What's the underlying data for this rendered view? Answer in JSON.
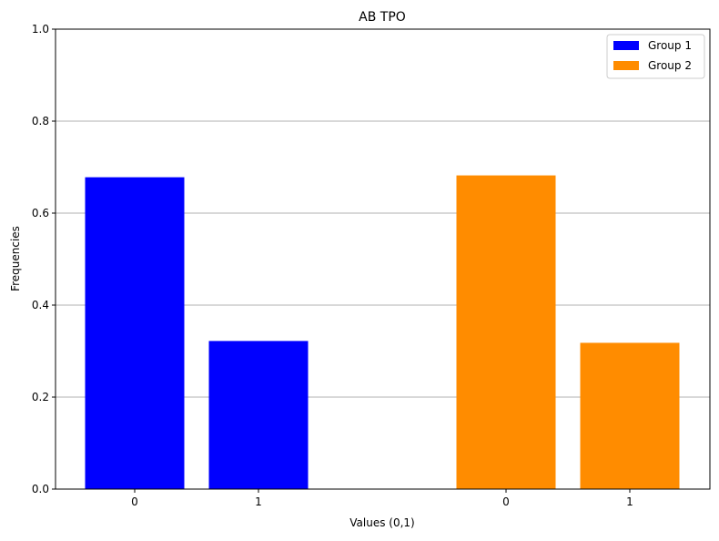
{
  "chart_data": {
    "type": "bar",
    "title": "AB TPO",
    "xlabel": "Values (0,1)",
    "ylabel": "Frequencies",
    "ylim": [
      0,
      1.0
    ],
    "yticks": [
      "0.0",
      "0.2",
      "0.4",
      "0.6",
      "0.8",
      "1.0"
    ],
    "grid": "y",
    "legend_position": "top-right",
    "series": [
      {
        "name": "Group 1",
        "color": "#0000ff",
        "categories": [
          "0",
          "1"
        ],
        "values": [
          0.678,
          0.322
        ]
      },
      {
        "name": "Group 2",
        "color": "#ff8c00",
        "categories": [
          "0",
          "1"
        ],
        "values": [
          0.682,
          0.318
        ]
      }
    ]
  }
}
